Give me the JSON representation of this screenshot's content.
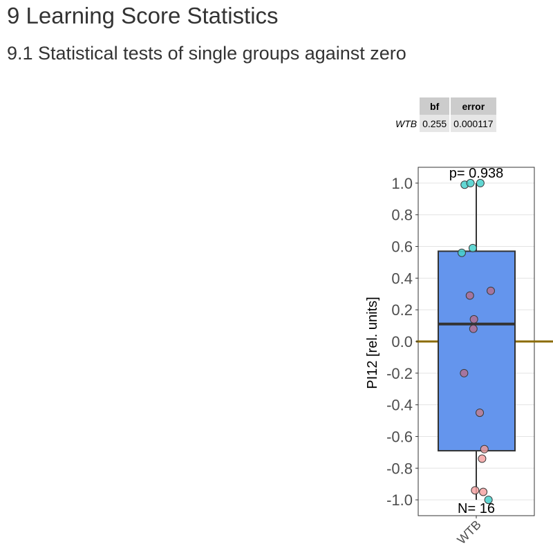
{
  "page": {
    "heading": "9 Learning Score Statistics",
    "subheading": "9.1 Statistical tests of single groups against zero"
  },
  "bf_table": {
    "columns": [
      "bf",
      "error"
    ],
    "rows": [
      {
        "name": "WTB",
        "bf": "0.255",
        "error": "0.000117"
      }
    ]
  },
  "chart_data": {
    "type": "boxplot",
    "ylabel": "PI12 [rel. units]",
    "xlabel": "",
    "categories": [
      "WTB"
    ],
    "ylim": [
      -1.1,
      1.1
    ],
    "yticks": [
      1.0,
      0.8,
      0.6,
      0.4,
      0.2,
      0.0,
      -0.2,
      -0.4,
      -0.6,
      -0.8,
      -1.0
    ],
    "ytick_labels": [
      "1.0",
      "0.8",
      "0.6",
      "0.4",
      "0.2",
      "0.0",
      "-0.2",
      "-0.4",
      "-0.6",
      "-0.8",
      "-1.0"
    ],
    "grid": true,
    "reference_line": {
      "y": 0,
      "color": "#8B6B00"
    },
    "box": {
      "group": "WTB",
      "q1": -0.69,
      "median": 0.11,
      "q3": 0.57,
      "whisker_low": -1.0,
      "whisker_high": 1.0,
      "fill": "#6495ED"
    },
    "annotations": {
      "p_value": "p= 0.938",
      "n": "N= 16"
    },
    "points": [
      {
        "x": -0.2,
        "y": 0.99,
        "color": "#48D1CC"
      },
      {
        "x": -0.1,
        "y": 1.0,
        "color": "#48D1CC"
      },
      {
        "x": 0.07,
        "y": 1.0,
        "color": "#48D1CC"
      },
      {
        "x": -0.25,
        "y": 0.56,
        "color": "#48D1CC"
      },
      {
        "x": -0.06,
        "y": 0.59,
        "color": "#48D1CC"
      },
      {
        "x": -0.11,
        "y": 0.29,
        "color": "#B07090"
      },
      {
        "x": 0.25,
        "y": 0.32,
        "color": "#B07090"
      },
      {
        "x": -0.04,
        "y": 0.14,
        "color": "#B07090"
      },
      {
        "x": -0.05,
        "y": 0.08,
        "color": "#B07090"
      },
      {
        "x": -0.21,
        "y": -0.2,
        "color": "#B07090"
      },
      {
        "x": 0.06,
        "y": -0.45,
        "color": "#C07F90"
      },
      {
        "x": 0.14,
        "y": -0.68,
        "color": "#E89A9A"
      },
      {
        "x": 0.1,
        "y": -0.74,
        "color": "#F4A3A3"
      },
      {
        "x": -0.02,
        "y": -0.94,
        "color": "#F4A3A3"
      },
      {
        "x": 0.12,
        "y": -0.95,
        "color": "#F4A3A3"
      },
      {
        "x": 0.21,
        "y": -1.0,
        "color": "#48D1CC"
      }
    ]
  }
}
